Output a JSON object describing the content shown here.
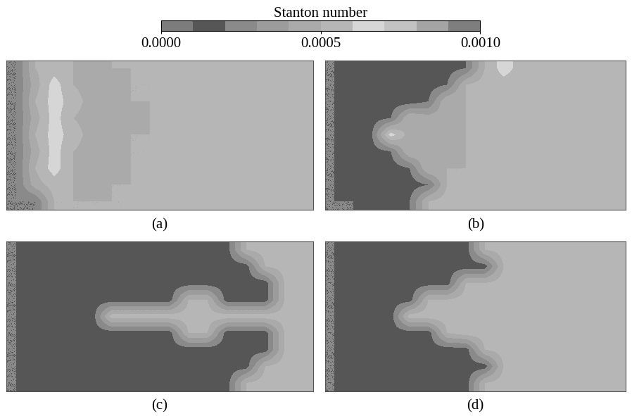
{
  "chart_data": {
    "type": "heatmap",
    "colorbar": {
      "label": "Stanton number",
      "range": [
        0.0,
        0.001
      ],
      "ticks": [
        {
          "value": 0.0,
          "label": "0.0000"
        },
        {
          "value": 0.0005,
          "label": "0.0005"
        },
        {
          "value": 0.001,
          "label": "0.0010"
        }
      ]
    },
    "panels": [
      {
        "label": "(a)",
        "cells": [
          [
            0.0002,
            0.0005,
            0.00055,
            0.0005,
            0.00045,
            0.0005,
            0.0005,
            0.00055,
            0.00055,
            0.00055,
            0.00055,
            0.00055,
            0.00055,
            0.00055,
            0.00055,
            0.00055
          ],
          [
            0.0002,
            0.00045,
            0.00065,
            0.0005,
            0.00045,
            0.00045,
            0.0005,
            0.0005,
            0.00055,
            0.00055,
            0.00055,
            0.00055,
            0.00055,
            0.00055,
            0.00055,
            0.00055
          ],
          [
            0.0002,
            0.0005,
            0.00065,
            0.00055,
            0.00045,
            0.00045,
            0.0005,
            0.0005,
            0.00055,
            0.00055,
            0.00055,
            0.00055,
            0.00055,
            0.00055,
            0.00055,
            0.00055
          ],
          [
            0.0002,
            0.00045,
            0.00065,
            0.0005,
            0.00045,
            0.00045,
            0.00045,
            0.0005,
            0.00055,
            0.00055,
            0.00055,
            0.00055,
            0.00055,
            0.00055,
            0.00055,
            0.00055
          ],
          [
            0.0002,
            0.0005,
            0.00065,
            0.00055,
            0.00045,
            0.00045,
            0.0005,
            0.0005,
            0.00055,
            0.00055,
            0.00055,
            0.00055,
            0.00055,
            0.00055,
            0.00055,
            0.00055
          ],
          [
            0.0002,
            0.00045,
            0.00065,
            0.0005,
            0.00045,
            0.00045,
            0.0005,
            0.0005,
            0.00055,
            0.00055,
            0.00055,
            0.00055,
            0.00055,
            0.00055,
            0.00055,
            0.00055
          ],
          [
            0.0002,
            0.0005,
            0.00065,
            0.0005,
            0.00045,
            0.00045,
            0.0005,
            0.0005,
            0.00055,
            0.00055,
            0.00055,
            0.00055,
            0.00055,
            0.00055,
            0.00055,
            0.00055
          ],
          [
            0.0002,
            0.00045,
            0.00055,
            0.0005,
            0.00045,
            0.0005,
            0.0005,
            0.00055,
            0.00055,
            0.00055,
            0.00055,
            0.00055,
            0.00055,
            0.00055,
            0.00055,
            0.00055
          ],
          [
            0.0002,
            0.0002,
            0.0005,
            0.0005,
            0.0005,
            0.0005,
            0.0005,
            0.00055,
            0.00055,
            0.00055,
            0.00055,
            0.00055,
            0.00055,
            0.00055,
            0.00055,
            0.00055
          ]
        ]
      },
      {
        "label": "(b)",
        "cells": [
          [
            0.0002,
            0.00015,
            0.00015,
            0.00015,
            0.00015,
            0.00015,
            0.00015,
            0.0002,
            0.0005,
            0.00065,
            0.00055,
            0.00055,
            0.00055,
            0.00055,
            0.00055,
            0.00055
          ],
          [
            0.0002,
            0.00015,
            0.00015,
            0.00015,
            0.00015,
            0.00015,
            0.0002,
            0.0005,
            0.00055,
            0.00055,
            0.00055,
            0.00055,
            0.00055,
            0.00055,
            0.00055,
            0.00055
          ],
          [
            0.0002,
            0.00015,
            0.00015,
            0.00015,
            0.00015,
            0.0002,
            0.0005,
            0.0005,
            0.0005,
            0.00055,
            0.00055,
            0.00055,
            0.00055,
            0.00055,
            0.00055,
            0.00055
          ],
          [
            0.0002,
            0.00015,
            0.00015,
            0.0002,
            0.0005,
            0.00045,
            0.00045,
            0.0005,
            0.00055,
            0.00055,
            0.00055,
            0.00055,
            0.00055,
            0.00055,
            0.00055,
            0.00055
          ],
          [
            0.0002,
            0.00015,
            0.0002,
            0.00065,
            0.00045,
            0.00045,
            0.00045,
            0.0005,
            0.00055,
            0.00055,
            0.00055,
            0.00055,
            0.00055,
            0.00055,
            0.00055,
            0.00055
          ],
          [
            0.0002,
            0.00015,
            0.00015,
            0.0002,
            0.0005,
            0.00045,
            0.00045,
            0.0005,
            0.00055,
            0.00055,
            0.00055,
            0.00055,
            0.00055,
            0.00055,
            0.00055,
            0.00055
          ],
          [
            0.0002,
            0.00015,
            0.00015,
            0.00015,
            0.0002,
            0.0005,
            0.0005,
            0.0005,
            0.00055,
            0.00055,
            0.00055,
            0.00055,
            0.00055,
            0.00055,
            0.00055,
            0.00055
          ],
          [
            0.0002,
            0.00015,
            0.00015,
            0.00015,
            0.00015,
            0.0002,
            0.0005,
            0.0005,
            0.00055,
            0.00055,
            0.00055,
            0.00055,
            0.00055,
            0.00055,
            0.00055,
            0.00055
          ],
          [
            0.0002,
            0.0002,
            0.00015,
            0.00015,
            0.0002,
            0.0005,
            0.00055,
            0.00055,
            0.00055,
            0.00055,
            0.00055,
            0.00055,
            0.00055,
            0.00055,
            0.00055,
            0.00055
          ]
        ]
      },
      {
        "label": "(c)",
        "cells": [
          [
            0.0002,
            0.00015,
            0.00015,
            0.00015,
            0.00015,
            0.00015,
            0.00015,
            0.00015,
            0.00015,
            0.00015,
            0.00015,
            0.00015,
            0.0005,
            0.00055,
            0.00055,
            0.00055
          ],
          [
            0.0002,
            0.00015,
            0.00015,
            0.00015,
            0.00015,
            0.00015,
            0.00015,
            0.00015,
            0.00015,
            0.00015,
            0.00015,
            0.00015,
            0.00015,
            0.0005,
            0.00055,
            0.00055
          ],
          [
            0.0002,
            0.00015,
            0.00015,
            0.00015,
            0.00015,
            0.00015,
            0.00015,
            0.00015,
            0.00015,
            0.00015,
            0.00015,
            0.00015,
            0.00015,
            0.00015,
            0.0005,
            0.00055
          ],
          [
            0.0002,
            0.00015,
            0.00015,
            0.00015,
            0.00015,
            0.00015,
            0.00015,
            0.00015,
            0.00015,
            0.0005,
            0.0005,
            0.00015,
            0.00015,
            0.00015,
            0.0005,
            0.00055
          ],
          [
            0.0002,
            0.00015,
            0.00015,
            0.00015,
            0.00015,
            0.00055,
            0.00055,
            0.00055,
            0.00055,
            0.00055,
            0.00055,
            0.00055,
            0.00055,
            0.00055,
            0.00055,
            0.00055
          ],
          [
            0.0002,
            0.00015,
            0.00015,
            0.00015,
            0.00015,
            0.00015,
            0.00015,
            0.00015,
            0.00015,
            0.0005,
            0.0005,
            0.00015,
            0.00015,
            0.00015,
            0.0005,
            0.00055
          ],
          [
            0.0002,
            0.00015,
            0.00015,
            0.00015,
            0.00015,
            0.00015,
            0.00015,
            0.00015,
            0.00015,
            0.00015,
            0.00015,
            0.00015,
            0.00015,
            0.00015,
            0.0005,
            0.00055
          ],
          [
            0.0002,
            0.00015,
            0.00015,
            0.00015,
            0.00015,
            0.00015,
            0.00015,
            0.00015,
            0.00015,
            0.00015,
            0.00015,
            0.00015,
            0.00015,
            0.0005,
            0.00055,
            0.00055
          ],
          [
            0.0002,
            0.00015,
            0.00015,
            0.00015,
            0.00015,
            0.00015,
            0.00015,
            0.00015,
            0.00015,
            0.00015,
            0.00015,
            0.00015,
            0.0005,
            0.00055,
            0.00055,
            0.00055
          ]
        ]
      },
      {
        "label": "(d)",
        "cells": [
          [
            0.0002,
            0.00015,
            0.00015,
            0.00015,
            0.00015,
            0.00015,
            0.00015,
            0.00015,
            0.0005,
            0.00055,
            0.00055,
            0.00055,
            0.00055,
            0.00055,
            0.00055,
            0.00055
          ],
          [
            0.0002,
            0.00015,
            0.00015,
            0.00015,
            0.00015,
            0.00015,
            0.00015,
            0.00015,
            0.00015,
            0.0005,
            0.00055,
            0.00055,
            0.00055,
            0.00055,
            0.00055,
            0.00055
          ],
          [
            0.0002,
            0.00015,
            0.00015,
            0.00015,
            0.00015,
            0.00015,
            0.00015,
            0.0005,
            0.0005,
            0.00055,
            0.00055,
            0.00055,
            0.00055,
            0.00055,
            0.00055,
            0.00055
          ],
          [
            0.0002,
            0.00015,
            0.00015,
            0.00015,
            0.00015,
            0.0005,
            0.0005,
            0.00055,
            0.00055,
            0.00055,
            0.00055,
            0.00055,
            0.00055,
            0.00055,
            0.00055,
            0.00055
          ],
          [
            0.0002,
            0.00015,
            0.00015,
            0.00015,
            0.00055,
            0.00055,
            0.00055,
            0.00055,
            0.00055,
            0.00055,
            0.00055,
            0.00055,
            0.00055,
            0.00055,
            0.00055,
            0.00055
          ],
          [
            0.0002,
            0.00015,
            0.00015,
            0.00015,
            0.00015,
            0.00015,
            0.0005,
            0.00055,
            0.00055,
            0.00055,
            0.00055,
            0.00055,
            0.00055,
            0.00055,
            0.00055,
            0.00055
          ],
          [
            0.0002,
            0.00015,
            0.00015,
            0.00015,
            0.00015,
            0.00015,
            0.00015,
            0.00015,
            0.0005,
            0.00055,
            0.00055,
            0.00055,
            0.00055,
            0.00055,
            0.00055,
            0.00055
          ],
          [
            0.0002,
            0.00015,
            0.00015,
            0.00015,
            0.00015,
            0.00015,
            0.00015,
            0.00015,
            0.00015,
            0.0005,
            0.00055,
            0.00055,
            0.00055,
            0.00055,
            0.00055,
            0.00055
          ],
          [
            0.0002,
            0.00015,
            0.00015,
            0.00015,
            0.00015,
            0.00015,
            0.00015,
            0.00015,
            0.0005,
            0.00055,
            0.00055,
            0.00055,
            0.00055,
            0.00055,
            0.00055,
            0.00055
          ]
        ]
      }
    ]
  }
}
